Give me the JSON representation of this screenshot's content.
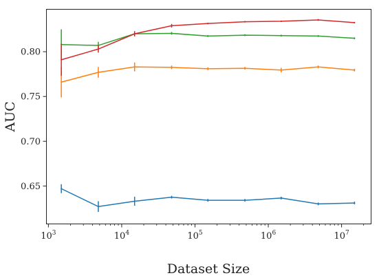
{
  "chart_data": {
    "type": "line",
    "title": "",
    "xlabel": "Dataset Size",
    "ylabel": "AUC",
    "xscale": "log",
    "xlim": [
      950,
      25000000
    ],
    "ylim": [
      0.608,
      0.847
    ],
    "x_ticks": [
      {
        "value": 1000,
        "base": "10",
        "exp": "3"
      },
      {
        "value": 10000,
        "base": "10",
        "exp": "4"
      },
      {
        "value": 100000,
        "base": "10",
        "exp": "5"
      },
      {
        "value": 1000000,
        "base": "10",
        "exp": "6"
      },
      {
        "value": 10000000,
        "base": "10",
        "exp": "7"
      }
    ],
    "y_ticks": [
      {
        "value": 0.65,
        "label": "0.65"
      },
      {
        "value": 0.7,
        "label": "0.70"
      },
      {
        "value": 0.75,
        "label": "0.75"
      },
      {
        "value": 0.8,
        "label": "0.80"
      }
    ],
    "grid": false,
    "legend": "none",
    "x": [
      1500,
      4800,
      15000,
      48000,
      150000,
      480000,
      1500000,
      4800000,
      15000000
    ],
    "series": [
      {
        "color": "#1f77b4",
        "values": [
          0.647,
          0.627,
          0.633,
          0.6375,
          0.634,
          0.634,
          0.6365,
          0.63,
          0.631
        ],
        "errors": [
          0.005,
          0.006,
          0.005,
          0.0015,
          0.0015,
          0.0015,
          0.0015,
          0.0015,
          0.0015
        ]
      },
      {
        "color": "#ff7f0e",
        "values": [
          0.766,
          0.777,
          0.783,
          0.7825,
          0.781,
          0.7815,
          0.7795,
          0.783,
          0.7795
        ],
        "errors": [
          0.017,
          0.006,
          0.005,
          0.002,
          0.0015,
          0.0015,
          0.0025,
          0.0015,
          0.0015
        ]
      },
      {
        "color": "#2ca02c",
        "values": [
          0.808,
          0.807,
          0.82,
          0.8205,
          0.8175,
          0.8185,
          0.818,
          0.8175,
          0.815
        ],
        "errors": [
          0.017,
          0.004,
          0.002,
          0.0015,
          0.001,
          0.001,
          0.001,
          0.001,
          0.001
        ]
      },
      {
        "color": "#d62728",
        "values": [
          0.791,
          0.803,
          0.82,
          0.829,
          0.8315,
          0.8335,
          0.834,
          0.8355,
          0.8325
        ],
        "errors": [
          0.018,
          0.004,
          0.003,
          0.002,
          0.0008,
          0.0008,
          0.0008,
          0.001,
          0.0008
        ]
      }
    ]
  }
}
